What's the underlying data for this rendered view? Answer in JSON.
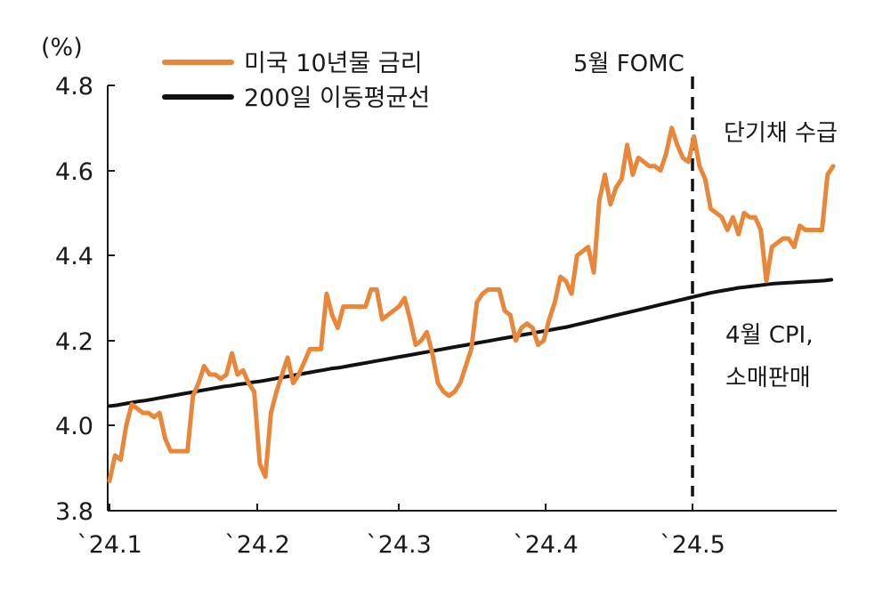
{
  "chart_data": {
    "type": "line",
    "title": "",
    "xlabel": "",
    "ylabel": "(%)",
    "ylim": [
      3.8,
      4.8
    ],
    "yticks": [
      "3.8",
      "4.0",
      "4.2",
      "4.4",
      "4.6",
      "4.8"
    ],
    "xlim": [
      0,
      107
    ],
    "x_ticks": [
      {
        "label": "`24.1",
        "x": 0
      },
      {
        "label": "`24.2",
        "x": 22
      },
      {
        "label": "`24.3",
        "x": 43
      },
      {
        "label": "`24.4",
        "x": 64
      },
      {
        "label": "`24.5",
        "x": 86
      }
    ],
    "series": [
      {
        "name": "미국 10년물 금리",
        "color": "#E8873A",
        "values": [
          3.87,
          3.93,
          3.92,
          4.0,
          4.05,
          4.04,
          4.03,
          4.03,
          4.02,
          4.03,
          3.97,
          3.94,
          3.94,
          3.94,
          3.94,
          4.07,
          4.1,
          4.14,
          4.12,
          4.12,
          4.11,
          4.12,
          4.17,
          4.12,
          4.13,
          4.1,
          4.08,
          3.91,
          3.88,
          4.03,
          4.08,
          4.12,
          4.16,
          4.1,
          4.12,
          4.15,
          4.18,
          4.18,
          4.18,
          4.31,
          4.26,
          4.23,
          4.28,
          4.28,
          4.28,
          4.28,
          4.28,
          4.32,
          4.32,
          4.25,
          4.26,
          4.27,
          4.28,
          4.3,
          4.25,
          4.19,
          4.2,
          4.22,
          4.17,
          4.1,
          4.08,
          4.07,
          4.08,
          4.1,
          4.14,
          4.18,
          4.29,
          4.31,
          4.32,
          4.32,
          4.32,
          4.27,
          4.26,
          4.2,
          4.23,
          4.24,
          4.23,
          4.19,
          4.2,
          4.25,
          4.29,
          4.35,
          4.34,
          4.31,
          4.4,
          4.41,
          4.42,
          4.36,
          4.53,
          4.59,
          4.52,
          4.56,
          4.58,
          4.66,
          4.59,
          4.63,
          4.62,
          4.61,
          4.61,
          4.6,
          4.64,
          4.7,
          4.66,
          4.63,
          4.62,
          4.68,
          4.61,
          4.58,
          4.51,
          4.5,
          4.49,
          4.46,
          4.49,
          4.45,
          4.5,
          4.49,
          4.49,
          4.46,
          4.34,
          4.42,
          4.43,
          4.44,
          4.44,
          4.42,
          4.47,
          4.46,
          4.46,
          4.46,
          4.46,
          4.59,
          4.61
        ]
      },
      {
        "name": "200일 이동평균선",
        "color": "#111111",
        "values": [
          4.046,
          4.048,
          4.051,
          4.054,
          4.057,
          4.059,
          4.062,
          4.065,
          4.068,
          4.071,
          4.074,
          4.077,
          4.08,
          4.083,
          4.086,
          4.089,
          4.092,
          4.094,
          4.097,
          4.099,
          4.102,
          4.104,
          4.107,
          4.11,
          4.113,
          4.116,
          4.119,
          4.122,
          4.125,
          4.128,
          4.131,
          4.134,
          4.136,
          4.139,
          4.142,
          4.145,
          4.148,
          4.151,
          4.154,
          4.157,
          4.16,
          4.163,
          4.166,
          4.169,
          4.172,
          4.175,
          4.178,
          4.181,
          4.184,
          4.187,
          4.19,
          4.193,
          4.196,
          4.199,
          4.202,
          4.205,
          4.208,
          4.211,
          4.214,
          4.217,
          4.22,
          4.223,
          4.226,
          4.229,
          4.232,
          4.236,
          4.24,
          4.244,
          4.248,
          4.252,
          4.256,
          4.26,
          4.264,
          4.268,
          4.272,
          4.276,
          4.28,
          4.284,
          4.288,
          4.292,
          4.296,
          4.3,
          4.304,
          4.308,
          4.312,
          4.315,
          4.318,
          4.321,
          4.324,
          4.326,
          4.328,
          4.33,
          4.332,
          4.334,
          4.335,
          4.336,
          4.337,
          4.338,
          4.339,
          4.34,
          4.341,
          4.343
        ]
      }
    ],
    "legend": {
      "position": "top-left"
    },
    "annotations": [
      {
        "text": "5월 FOMC",
        "type": "vertical-dashed-line",
        "at_label": "`24.5"
      },
      {
        "text": "단기채 수급",
        "type": "label"
      },
      {
        "text": "4월 CPI,",
        "type": "label"
      },
      {
        "text": "소매판매",
        "type": "label"
      }
    ]
  }
}
